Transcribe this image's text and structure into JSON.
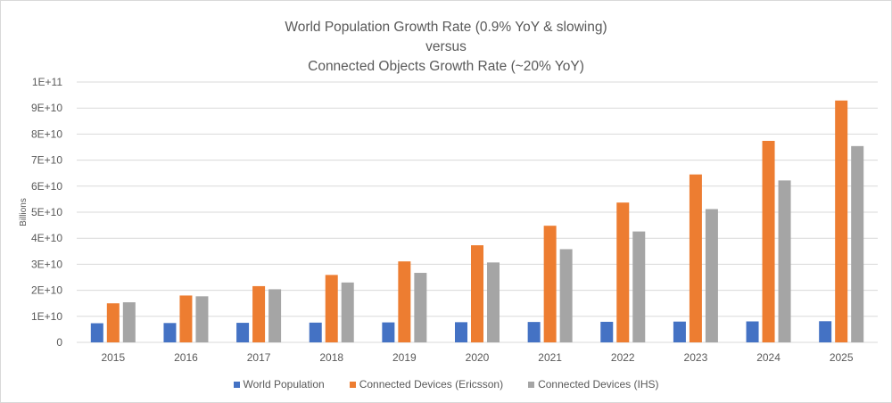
{
  "chart_data": {
    "type": "bar",
    "title_lines": [
      "World Population Growth Rate (0.9% YoY & slowing)",
      "versus",
      "Connected Objects Growth Rate (~20% YoY)"
    ],
    "xlabel": "",
    "ylabel": "Billions",
    "ylim": [
      0,
      100000000000
    ],
    "yticks": [
      {
        "value": 0,
        "label": "0"
      },
      {
        "value": 10000000000,
        "label": "1E+10"
      },
      {
        "value": 20000000000,
        "label": "2E+10"
      },
      {
        "value": 30000000000,
        "label": "3E+10"
      },
      {
        "value": 40000000000,
        "label": "4E+10"
      },
      {
        "value": 50000000000,
        "label": "5E+10"
      },
      {
        "value": 60000000000,
        "label": "6E+10"
      },
      {
        "value": 70000000000,
        "label": "7E+10"
      },
      {
        "value": 80000000000,
        "label": "8E+10"
      },
      {
        "value": 90000000000,
        "label": "9E+10"
      },
      {
        "value": 100000000000,
        "label": "1E+11"
      }
    ],
    "grid": true,
    "legend_position": "bottom",
    "categories": [
      "2015",
      "2016",
      "2017",
      "2018",
      "2019",
      "2020",
      "2021",
      "2022",
      "2023",
      "2024",
      "2025"
    ],
    "series": [
      {
        "name": "World Population",
        "color": "#4472c4",
        "values": [
          7350000000.0,
          7430000000.0,
          7510000000.0,
          7590000000.0,
          7670000000.0,
          7750000000.0,
          7830000000.0,
          7900000000.0,
          7980000000.0,
          8050000000.0,
          8120000000.0
        ]
      },
      {
        "name": "Connected Devices (Ericsson)",
        "color": "#ed7d31",
        "values": [
          15000000000.0,
          18000000000.0,
          21600000000.0,
          25900000000.0,
          31100000000.0,
          37300000000.0,
          44800000000.0,
          53700000000.0,
          64500000000.0,
          77400000000.0,
          92900000000.0
        ]
      },
      {
        "name": "Connected Devices (IHS)",
        "color": "#a5a5a5",
        "values": [
          15400000000.0,
          17700000000.0,
          20400000000.0,
          23000000000.0,
          26700000000.0,
          30700000000.0,
          35800000000.0,
          42600000000.0,
          51200000000.0,
          62200000000.0,
          75400000000.0
        ]
      }
    ]
  }
}
